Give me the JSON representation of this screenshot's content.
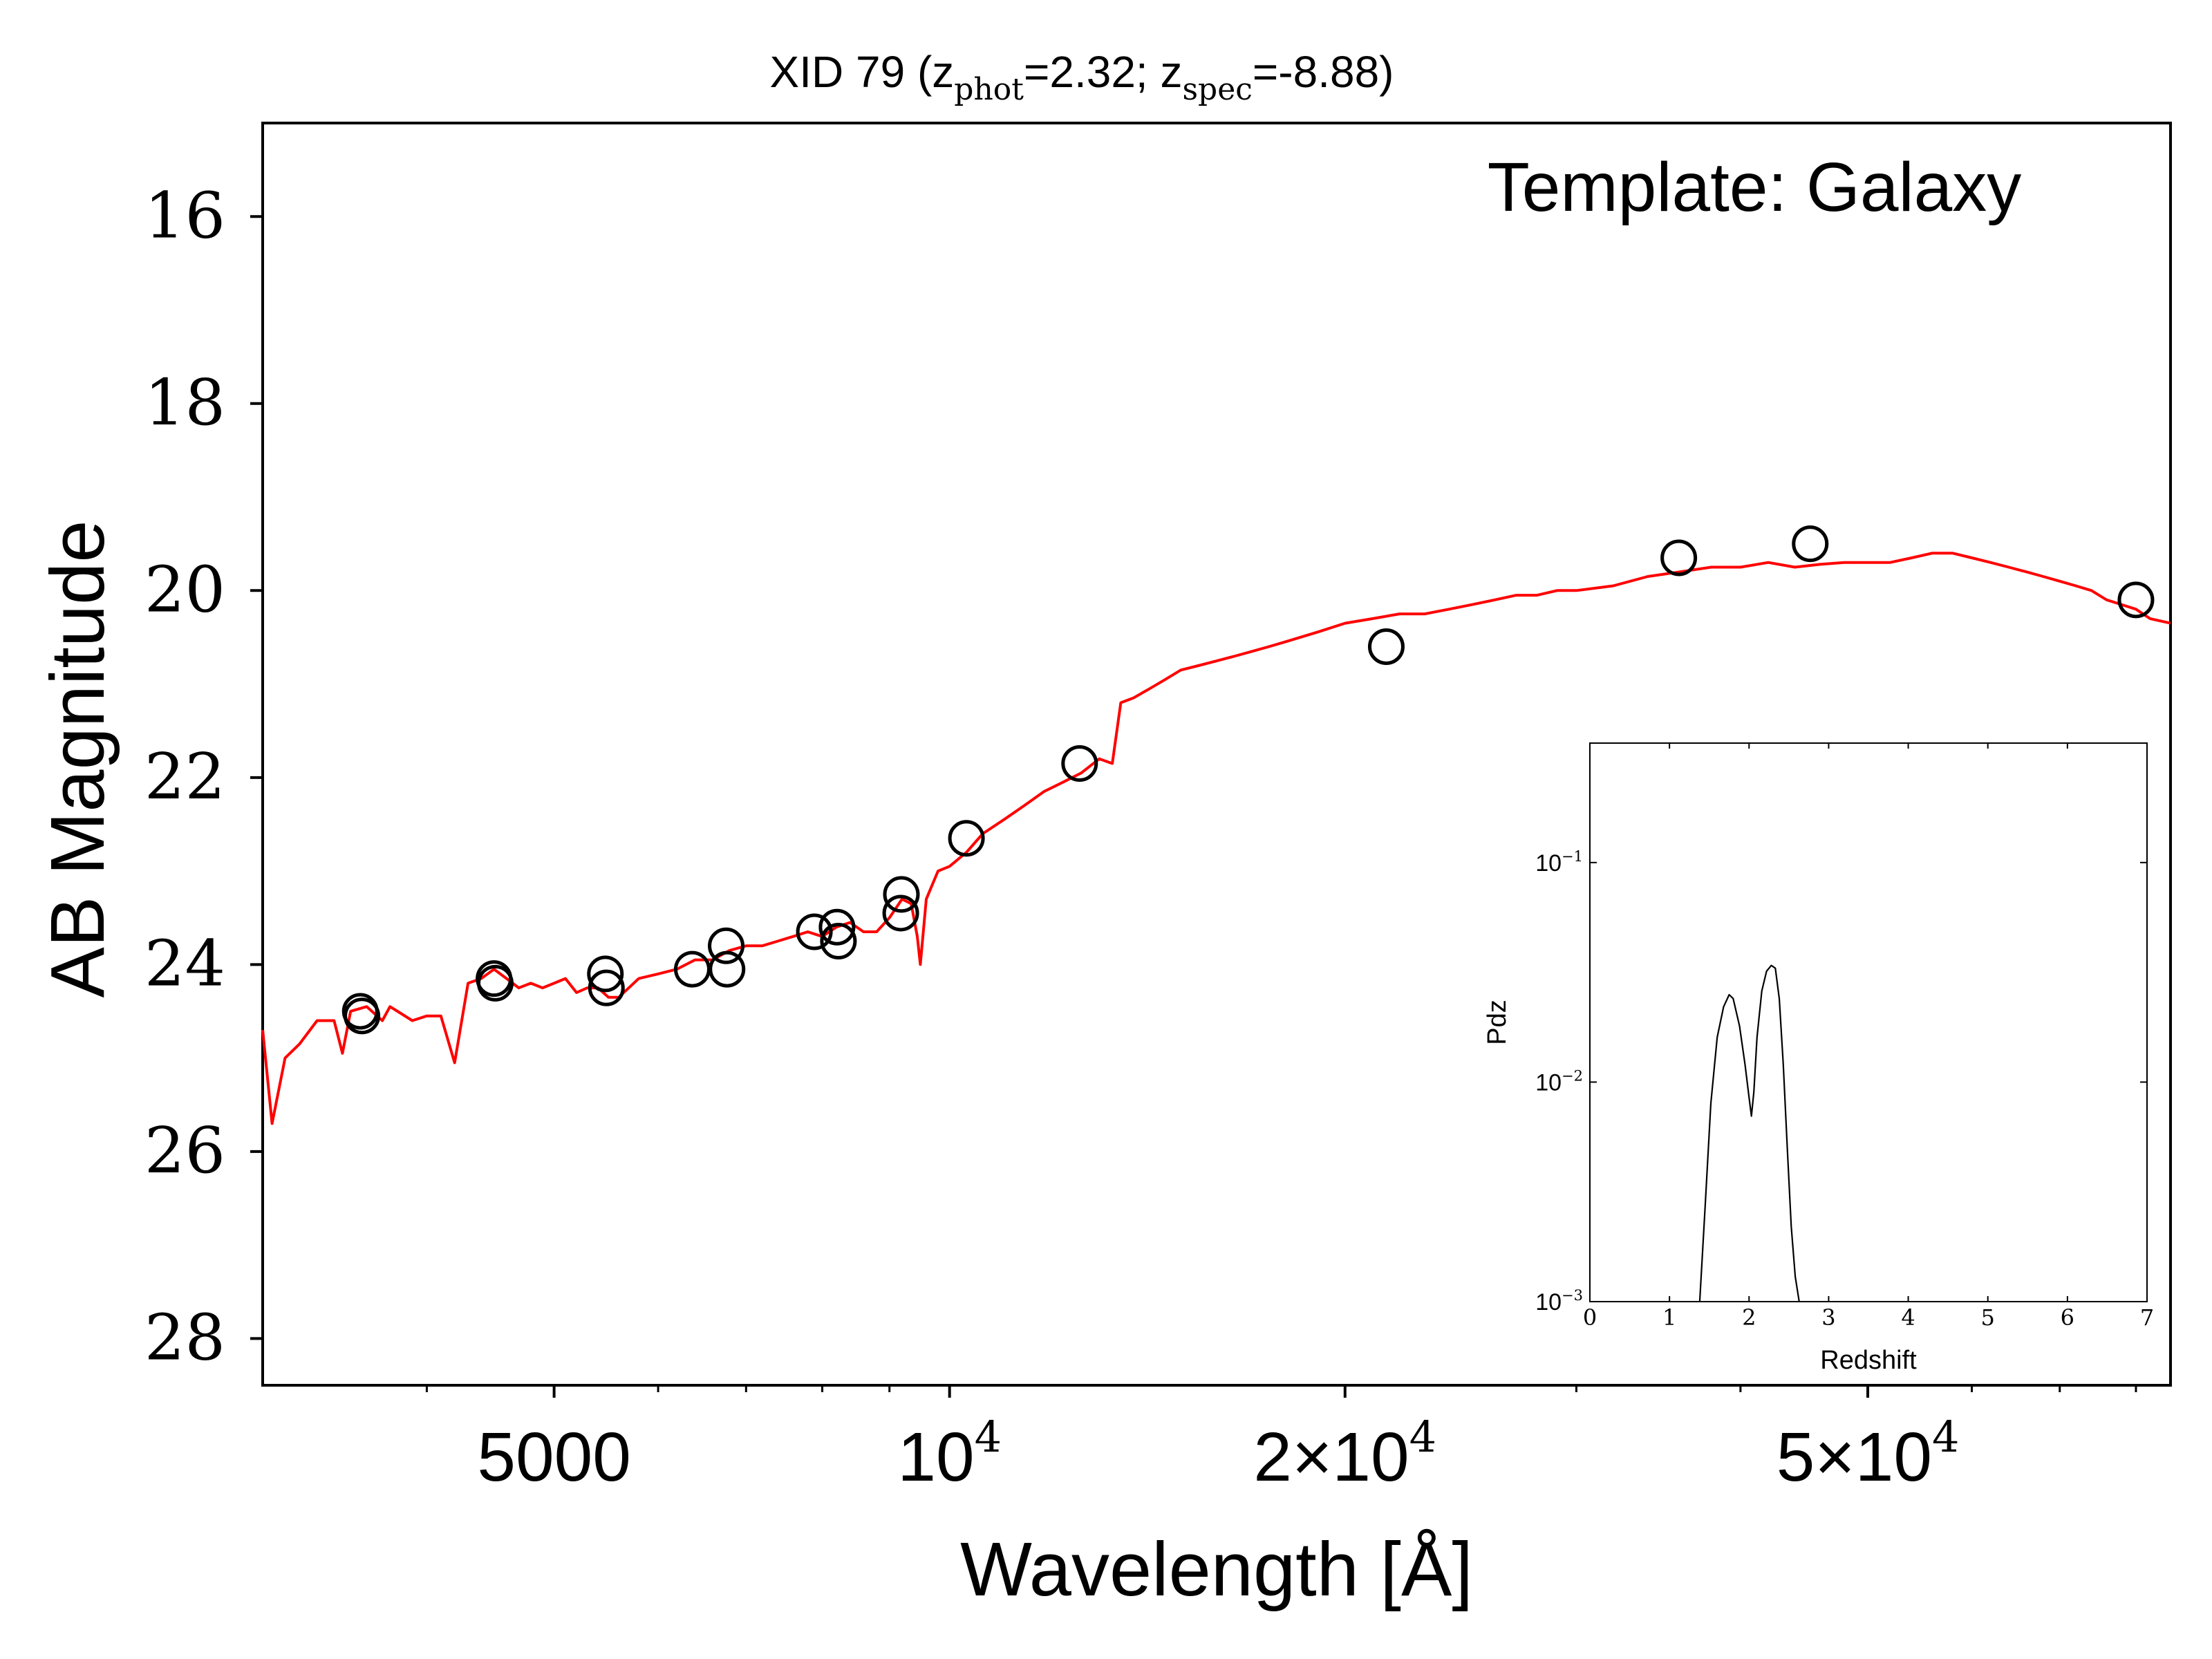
{
  "chart_data": [
    {
      "type": "line",
      "title": {
        "prefix": "XID 79 (z",
        "sub1": "phot",
        "mid": "=2.32; z",
        "sub2": "spec",
        "suffix": "=-8.88)"
      },
      "annotation": "Template: Galaxy",
      "xlabel": "Wavelength [Å]",
      "ylabel": "AB Magnitude",
      "x_scale": "log",
      "y_inverted": true,
      "xlim": [
        3000,
        85000
      ],
      "ylim": [
        28.5,
        15
      ],
      "x_ticks": [
        {
          "value": 5000,
          "base": "5000"
        },
        {
          "value": 10000,
          "base": "10",
          "exp": "4"
        },
        {
          "value": 20000,
          "base": "2×10",
          "exp": "4"
        },
        {
          "value": 50000,
          "base": "5×10",
          "exp": "4"
        }
      ],
      "x_minor_ticks": [
        4000,
        6000,
        7000,
        8000,
        9000,
        30000,
        40000,
        60000,
        70000,
        80000
      ],
      "y_ticks": [
        {
          "value": 16,
          "label": "16"
        },
        {
          "value": 18,
          "label": "18"
        },
        {
          "value": 20,
          "label": "20"
        },
        {
          "value": 22,
          "label": "22"
        },
        {
          "value": 24,
          "label": "24"
        },
        {
          "value": 26,
          "label": "26"
        },
        {
          "value": 28,
          "label": "28"
        }
      ],
      "series": [
        {
          "kind": "template-spectrum",
          "color": "#ff0000",
          "x": [
            3000,
            3050,
            3120,
            3200,
            3300,
            3400,
            3450,
            3500,
            3600,
            3700,
            3750,
            3800,
            3900,
            4000,
            4100,
            4200,
            4300,
            4400,
            4500,
            4600,
            4700,
            4800,
            4900,
            5000,
            5100,
            5200,
            5300,
            5400,
            5500,
            5600,
            5800,
            6000,
            6200,
            6400,
            6600,
            6800,
            7000,
            7200,
            7400,
            7600,
            7800,
            8000,
            8200,
            8400,
            8600,
            8800,
            9000,
            9200,
            9350,
            9450,
            9500,
            9600,
            9800,
            10000,
            10300,
            10600,
            11000,
            11400,
            11800,
            12200,
            12600,
            13000,
            13300,
            13500,
            13800,
            14200,
            14600,
            15000,
            15500,
            16000,
            16500,
            17000,
            17500,
            18000,
            19000,
            20000,
            21000,
            22000,
            23000,
            24000,
            25000,
            26000,
            27000,
            28000,
            29000,
            30000,
            32000,
            34000,
            36000,
            38000,
            40000,
            42000,
            44000,
            46000,
            48000,
            50000,
            52000,
            54000,
            56000,
            58000,
            60000,
            62000,
            64000,
            66000,
            68000,
            70000,
            72000,
            74000,
            76000,
            78000,
            80000,
            82000,
            85000
          ],
          "y": [
            24.7,
            25.7,
            25.0,
            24.85,
            24.6,
            24.6,
            24.95,
            24.5,
            24.45,
            24.6,
            24.45,
            24.5,
            24.6,
            24.55,
            24.55,
            25.05,
            24.2,
            24.15,
            24.05,
            24.15,
            24.25,
            24.2,
            24.25,
            24.2,
            24.15,
            24.3,
            24.25,
            24.25,
            24.35,
            24.35,
            24.15,
            24.1,
            24.05,
            23.95,
            23.95,
            23.85,
            23.8,
            23.8,
            23.75,
            23.7,
            23.65,
            23.7,
            23.6,
            23.55,
            23.65,
            23.65,
            23.5,
            23.3,
            23.35,
            23.7,
            24.0,
            23.3,
            23.0,
            22.95,
            22.8,
            22.6,
            22.45,
            22.3,
            22.15,
            22.05,
            21.95,
            21.8,
            21.85,
            21.2,
            21.15,
            21.05,
            20.95,
            20.85,
            20.8,
            20.75,
            20.7,
            20.65,
            20.6,
            20.55,
            20.45,
            20.35,
            20.3,
            20.25,
            20.25,
            20.2,
            20.15,
            20.1,
            20.05,
            20.05,
            20.0,
            20.0,
            19.95,
            19.85,
            19.8,
            19.75,
            19.75,
            19.7,
            19.75,
            19.72,
            19.7,
            19.7,
            19.7,
            19.65,
            19.6,
            19.6,
            19.65,
            19.7,
            19.75,
            19.8,
            19.85,
            19.9,
            19.95,
            20.0,
            20.1,
            20.15,
            20.2,
            20.3,
            20.35
          ]
        },
        {
          "kind": "photometry",
          "marker": "open-circle",
          "color": "#000000",
          "points": [
            {
              "x": 3560,
              "y": 24.5
            },
            {
              "x": 3570,
              "y": 24.55
            },
            {
              "x": 4500,
              "y": 24.15
            },
            {
              "x": 4510,
              "y": 24.2
            },
            {
              "x": 5470,
              "y": 24.1
            },
            {
              "x": 5480,
              "y": 24.25
            },
            {
              "x": 6370,
              "y": 24.05
            },
            {
              "x": 6760,
              "y": 23.8
            },
            {
              "x": 6770,
              "y": 24.05
            },
            {
              "x": 7890,
              "y": 23.65
            },
            {
              "x": 8210,
              "y": 23.6
            },
            {
              "x": 8230,
              "y": 23.75
            },
            {
              "x": 9190,
              "y": 23.25
            },
            {
              "x": 9180,
              "y": 23.45
            },
            {
              "x": 10300,
              "y": 22.65
            },
            {
              "x": 12560,
              "y": 21.85
            },
            {
              "x": 21500,
              "y": 20.6
            },
            {
              "x": 35900,
              "y": 19.65
            },
            {
              "x": 45200,
              "y": 19.5
            },
            {
              "x": 80000,
              "y": 20.1
            }
          ]
        }
      ]
    },
    {
      "type": "line",
      "title": "",
      "xlabel": "Redshift",
      "ylabel": "Pdz",
      "y_scale": "log",
      "xlim": [
        0,
        7
      ],
      "ylim": [
        0.001,
        0.35
      ],
      "x_ticks": [
        "0",
        "1",
        "2",
        "3",
        "4",
        "5",
        "6",
        "7"
      ],
      "y_ticks": [
        {
          "value": 0.001,
          "base": "10",
          "exp": "−3"
        },
        {
          "value": 0.01,
          "base": "10",
          "exp": "−2"
        },
        {
          "value": 0.1,
          "base": "10",
          "exp": "−1"
        }
      ],
      "series": [
        {
          "kind": "pdz",
          "color": "#000000",
          "x": [
            1.38,
            1.45,
            1.52,
            1.6,
            1.68,
            1.75,
            1.8,
            1.88,
            1.95,
            2.0,
            2.03,
            2.06,
            2.1,
            2.16,
            2.22,
            2.28,
            2.33,
            2.38,
            2.43,
            2.48,
            2.53,
            2.58,
            2.63
          ],
          "y": [
            0.001,
            0.0028,
            0.008,
            0.016,
            0.022,
            0.025,
            0.024,
            0.018,
            0.012,
            0.0085,
            0.007,
            0.009,
            0.016,
            0.026,
            0.032,
            0.034,
            0.033,
            0.024,
            0.012,
            0.005,
            0.0022,
            0.0013,
            0.001
          ]
        }
      ]
    }
  ]
}
